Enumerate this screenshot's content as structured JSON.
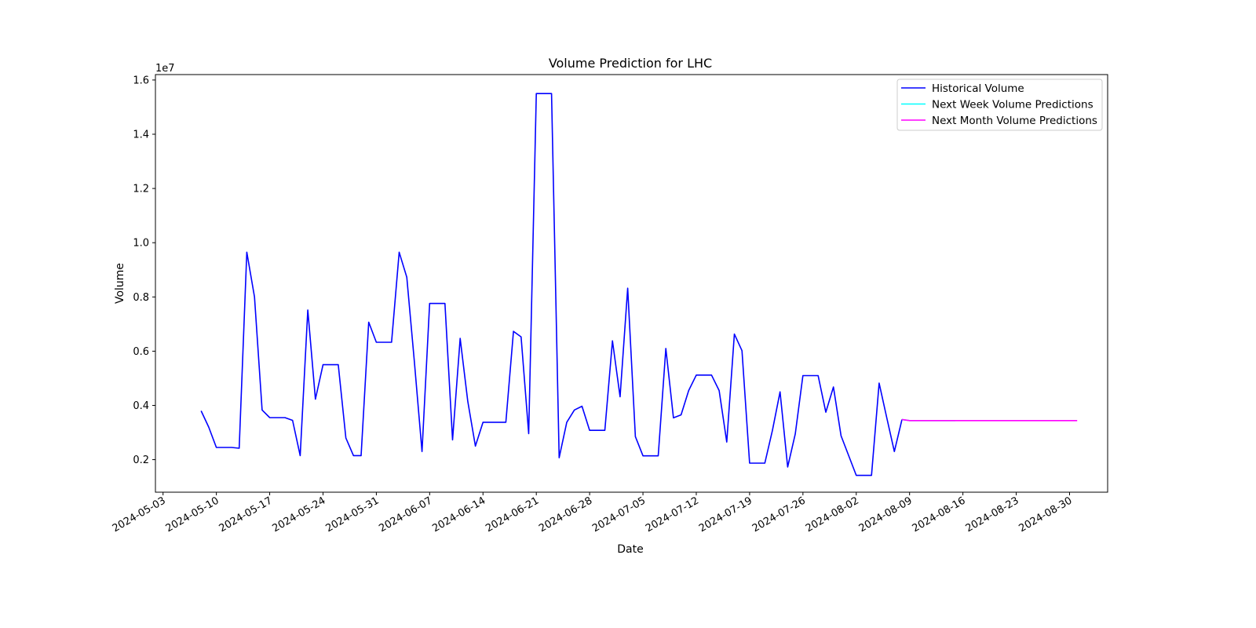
{
  "chart_data": {
    "type": "line",
    "title": "Volume Prediction for LHC",
    "xlabel": "Date",
    "ylabel": "Volume",
    "y_offset_label": "1e7",
    "y_scale_factor": 10000000,
    "ylim": [
      800000,
      16200000
    ],
    "xlim": [
      "2024-05-02",
      "2024-09-04"
    ],
    "x_ticks": [
      "2024-05-03",
      "2024-05-10",
      "2024-05-17",
      "2024-05-24",
      "2024-05-31",
      "2024-06-07",
      "2024-06-14",
      "2024-06-21",
      "2024-06-28",
      "2024-07-05",
      "2024-07-12",
      "2024-07-19",
      "2024-07-26",
      "2024-08-02",
      "2024-08-09",
      "2024-08-16",
      "2024-08-23",
      "2024-08-30"
    ],
    "y_ticks": [
      0.2,
      0.4,
      0.6,
      0.8,
      1.0,
      1.2,
      1.4,
      1.6
    ],
    "grid": false,
    "legend_position": "top-right",
    "series": [
      {
        "name": "Historical Volume",
        "color": "#0000ff",
        "points": [
          [
            "2024-05-08",
            3800000
          ],
          [
            "2024-05-09",
            3200000
          ],
          [
            "2024-05-10",
            2450000
          ],
          [
            "2024-05-12",
            2450000
          ],
          [
            "2024-05-13",
            2420000
          ],
          [
            "2024-05-14",
            9650000
          ],
          [
            "2024-05-15",
            8000000
          ],
          [
            "2024-05-16",
            3830000
          ],
          [
            "2024-05-17",
            3550000
          ],
          [
            "2024-05-19",
            3550000
          ],
          [
            "2024-05-20",
            3450000
          ],
          [
            "2024-05-21",
            2150000
          ],
          [
            "2024-05-22",
            7520000
          ],
          [
            "2024-05-23",
            4230000
          ],
          [
            "2024-05-24",
            5500000
          ],
          [
            "2024-05-26",
            5500000
          ],
          [
            "2024-05-27",
            2800000
          ],
          [
            "2024-05-28",
            2150000
          ],
          [
            "2024-05-29",
            2150000
          ],
          [
            "2024-05-30",
            7070000
          ],
          [
            "2024-05-31",
            6330000
          ],
          [
            "2024-06-02",
            6330000
          ],
          [
            "2024-06-03",
            9650000
          ],
          [
            "2024-06-04",
            8730000
          ],
          [
            "2024-06-05",
            5600000
          ],
          [
            "2024-06-06",
            2300000
          ],
          [
            "2024-06-07",
            7760000
          ],
          [
            "2024-06-09",
            7760000
          ],
          [
            "2024-06-10",
            2730000
          ],
          [
            "2024-06-11",
            6470000
          ],
          [
            "2024-06-12",
            4150000
          ],
          [
            "2024-06-13",
            2500000
          ],
          [
            "2024-06-14",
            3380000
          ],
          [
            "2024-06-17",
            3380000
          ],
          [
            "2024-06-18",
            6730000
          ],
          [
            "2024-06-19",
            6530000
          ],
          [
            "2024-06-20",
            2960000
          ],
          [
            "2024-06-21",
            15500000
          ],
          [
            "2024-06-23",
            15500000
          ],
          [
            "2024-06-24",
            2070000
          ],
          [
            "2024-06-25",
            3380000
          ],
          [
            "2024-06-26",
            3830000
          ],
          [
            "2024-06-27",
            3970000
          ],
          [
            "2024-06-28",
            3080000
          ],
          [
            "2024-06-30",
            3080000
          ],
          [
            "2024-07-01",
            6380000
          ],
          [
            "2024-07-02",
            4320000
          ],
          [
            "2024-07-03",
            8320000
          ],
          [
            "2024-07-04",
            2850000
          ],
          [
            "2024-07-05",
            2140000
          ],
          [
            "2024-07-07",
            2140000
          ],
          [
            "2024-07-08",
            6100000
          ],
          [
            "2024-07-09",
            3540000
          ],
          [
            "2024-07-10",
            3650000
          ],
          [
            "2024-07-11",
            4550000
          ],
          [
            "2024-07-12",
            5120000
          ],
          [
            "2024-07-14",
            5120000
          ],
          [
            "2024-07-15",
            4550000
          ],
          [
            "2024-07-16",
            2650000
          ],
          [
            "2024-07-17",
            6630000
          ],
          [
            "2024-07-18",
            6020000
          ],
          [
            "2024-07-19",
            1870000
          ],
          [
            "2024-07-21",
            1870000
          ],
          [
            "2024-07-22",
            3080000
          ],
          [
            "2024-07-23",
            4500000
          ],
          [
            "2024-07-24",
            1730000
          ],
          [
            "2024-07-25",
            2950000
          ],
          [
            "2024-07-26",
            5100000
          ],
          [
            "2024-07-28",
            5100000
          ],
          [
            "2024-07-29",
            3750000
          ],
          [
            "2024-07-30",
            4680000
          ],
          [
            "2024-07-31",
            2880000
          ],
          [
            "2024-08-01",
            2150000
          ],
          [
            "2024-08-02",
            1420000
          ],
          [
            "2024-08-04",
            1420000
          ],
          [
            "2024-08-05",
            4820000
          ],
          [
            "2024-08-06",
            3550000
          ],
          [
            "2024-08-07",
            2300000
          ],
          [
            "2024-08-08",
            3480000
          ]
        ]
      },
      {
        "name": "Next Week Volume Predictions",
        "color": "#00ffff",
        "points": [
          [
            "2024-08-08",
            3480000
          ],
          [
            "2024-08-09",
            3440000
          ],
          [
            "2024-08-10",
            3440000
          ],
          [
            "2024-08-11",
            3440000
          ],
          [
            "2024-08-12",
            3440000
          ],
          [
            "2024-08-13",
            3440000
          ],
          [
            "2024-08-14",
            3440000
          ],
          [
            "2024-08-15",
            3440000
          ]
        ]
      },
      {
        "name": "Next Month Volume Predictions",
        "color": "#ff00ff",
        "points": [
          [
            "2024-08-08",
            3480000
          ],
          [
            "2024-08-09",
            3440000
          ],
          [
            "2024-08-16",
            3440000
          ],
          [
            "2024-08-23",
            3440000
          ],
          [
            "2024-08-30",
            3440000
          ],
          [
            "2024-08-31",
            3440000
          ]
        ]
      }
    ]
  }
}
